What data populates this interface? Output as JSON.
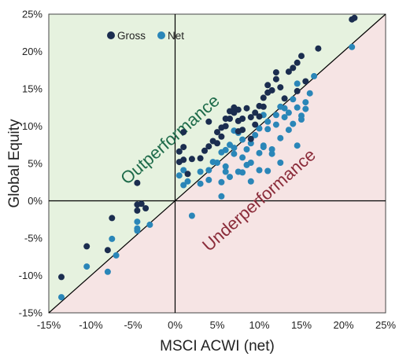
{
  "chart_data": {
    "type": "scatter",
    "xlabel": "MSCI ACWI (net)",
    "ylabel": "Global Equity",
    "xlim": [
      -15,
      25
    ],
    "ylim": [
      -15,
      25
    ],
    "x_ticks": [
      "-15%",
      "-10%",
      "-5%",
      "0%",
      "5%",
      "10%",
      "15%",
      "20%",
      "25%"
    ],
    "y_ticks": [
      "-15%",
      "-10%",
      "-5%",
      "0%",
      "5%",
      "10%",
      "15%",
      "20%",
      "25%"
    ],
    "grid": true,
    "legend_position": "top-left",
    "reference_line": "y = x",
    "region_labels": {
      "above": "Outperformance",
      "below": "Underperformance"
    },
    "colors": {
      "gross": "#1b2d4f",
      "net": "#2a86b8",
      "outperformance_fill": "#e6f2df",
      "underperformance_fill": "#f6e4e4",
      "outperformance_text": "#1e6b4a",
      "underperformance_text": "#8b2c3a"
    },
    "series": [
      {
        "name": "Gross",
        "points": [
          [
            -13.5,
            -10.2
          ],
          [
            -10.5,
            -6.1
          ],
          [
            -8,
            -6.6
          ],
          [
            -7.5,
            -2.3
          ],
          [
            -4.5,
            2.4
          ],
          [
            -4.5,
            -0.5
          ],
          [
            -4.5,
            -1.3
          ],
          [
            -4,
            -0.4
          ],
          [
            -3.5,
            -1
          ],
          [
            0.5,
            5.2
          ],
          [
            0.5,
            6.6
          ],
          [
            1,
            7.2
          ],
          [
            1,
            9.2
          ],
          [
            1,
            5.5
          ],
          [
            1.5,
            3.6
          ],
          [
            2,
            5.6
          ],
          [
            3,
            5.7
          ],
          [
            3.5,
            6.7
          ],
          [
            4,
            7.3
          ],
          [
            4,
            10.6
          ],
          [
            4.5,
            8
          ],
          [
            5,
            9.2
          ],
          [
            5.5,
            9.8
          ],
          [
            5.5,
            8.6
          ],
          [
            6,
            11
          ],
          [
            6,
            10
          ],
          [
            6.5,
            12
          ],
          [
            6.5,
            11
          ],
          [
            7,
            12.5
          ],
          [
            7,
            11.8
          ],
          [
            7.5,
            12.2
          ],
          [
            7.5,
            10.7
          ],
          [
            8,
            11
          ],
          [
            8,
            9.5
          ],
          [
            8.5,
            12.4
          ],
          [
            9,
            11.2
          ],
          [
            9.5,
            11.8
          ],
          [
            9.5,
            10.2
          ],
          [
            10,
            12.7
          ],
          [
            10,
            11.3
          ],
          [
            10.5,
            13.8
          ],
          [
            10.5,
            12.6
          ],
          [
            11,
            14.5
          ],
          [
            11,
            15.5
          ],
          [
            11.5,
            14.8
          ],
          [
            12,
            17.2
          ],
          [
            12,
            16.3
          ],
          [
            12.5,
            15.2
          ],
          [
            13,
            13.7
          ],
          [
            13.5,
            17.3
          ],
          [
            14,
            17.8
          ],
          [
            14.5,
            18.5
          ],
          [
            14.5,
            14.7
          ],
          [
            15,
            19.4
          ],
          [
            15.5,
            16
          ],
          [
            17,
            20.4
          ],
          [
            21,
            24.3
          ],
          [
            21.3,
            24.5
          ],
          [
            9,
            8.3
          ],
          [
            7.5,
            9.3
          ],
          [
            5,
            7.7
          ]
        ]
      },
      {
        "name": "Net",
        "points": [
          [
            -13.5,
            -12.9
          ],
          [
            -10.5,
            -8.8
          ],
          [
            -8,
            -9.5
          ],
          [
            -7.5,
            -5.1
          ],
          [
            -7,
            -7.3
          ],
          [
            -4.5,
            -2.8
          ],
          [
            -4.5,
            -3.7
          ],
          [
            -4.5,
            -4
          ],
          [
            -3,
            -3.2
          ],
          [
            0.5,
            3.4
          ],
          [
            1,
            4.1
          ],
          [
            1,
            2.1
          ],
          [
            1.5,
            2.6
          ],
          [
            2,
            -2
          ],
          [
            3,
            2.3
          ],
          [
            4,
            4.1
          ],
          [
            4.5,
            5.2
          ],
          [
            5,
            5.1
          ],
          [
            5.5,
            6.5
          ],
          [
            5.5,
            0.6
          ],
          [
            6,
            6.8
          ],
          [
            6,
            4.6
          ],
          [
            6.5,
            7.5
          ],
          [
            7,
            7.1
          ],
          [
            7,
            9.4
          ],
          [
            7.5,
            9.1
          ],
          [
            8,
            8.2
          ],
          [
            8,
            5.8
          ],
          [
            8.5,
            4.8
          ],
          [
            9,
            2.6
          ],
          [
            9.5,
            8.8
          ],
          [
            10,
            6.4
          ],
          [
            10,
            4.1
          ],
          [
            10.5,
            11.5
          ],
          [
            10.5,
            7.4
          ],
          [
            11,
            9.6
          ],
          [
            11,
            4
          ],
          [
            11.5,
            6.3
          ],
          [
            12,
            10.2
          ],
          [
            12.5,
            12.6
          ],
          [
            13,
            11.2
          ],
          [
            13.5,
            11.8
          ],
          [
            14.5,
            15.7
          ],
          [
            14.5,
            7.4
          ],
          [
            15,
            10.9
          ],
          [
            15.5,
            12.3
          ],
          [
            16.5,
            16.7
          ],
          [
            21,
            20.6
          ],
          [
            6.5,
            3.2
          ],
          [
            8,
            3.8
          ],
          [
            5.5,
            2.5
          ],
          [
            7.5,
            3.9
          ],
          [
            9,
            5.1
          ],
          [
            10.5,
            7.2
          ],
          [
            12.5,
            8.4
          ],
          [
            13.5,
            9.5
          ],
          [
            14,
            10.3
          ],
          [
            15,
            11.4
          ],
          [
            4,
            2.8
          ],
          [
            3,
            3.9
          ],
          [
            6,
            3.9
          ],
          [
            7,
            6.3
          ],
          [
            9,
            7.7
          ],
          [
            10,
            9.7
          ],
          [
            11,
            10.6
          ],
          [
            12,
            11.5
          ],
          [
            13,
            12.4
          ],
          [
            14,
            13.6
          ],
          [
            14.5,
            12.5
          ],
          [
            15.5,
            13.2
          ],
          [
            16,
            14.4
          ],
          [
            8.5,
            6.9
          ],
          [
            11.5,
            6.9
          ],
          [
            12.5,
            5.1
          ]
        ]
      }
    ]
  }
}
